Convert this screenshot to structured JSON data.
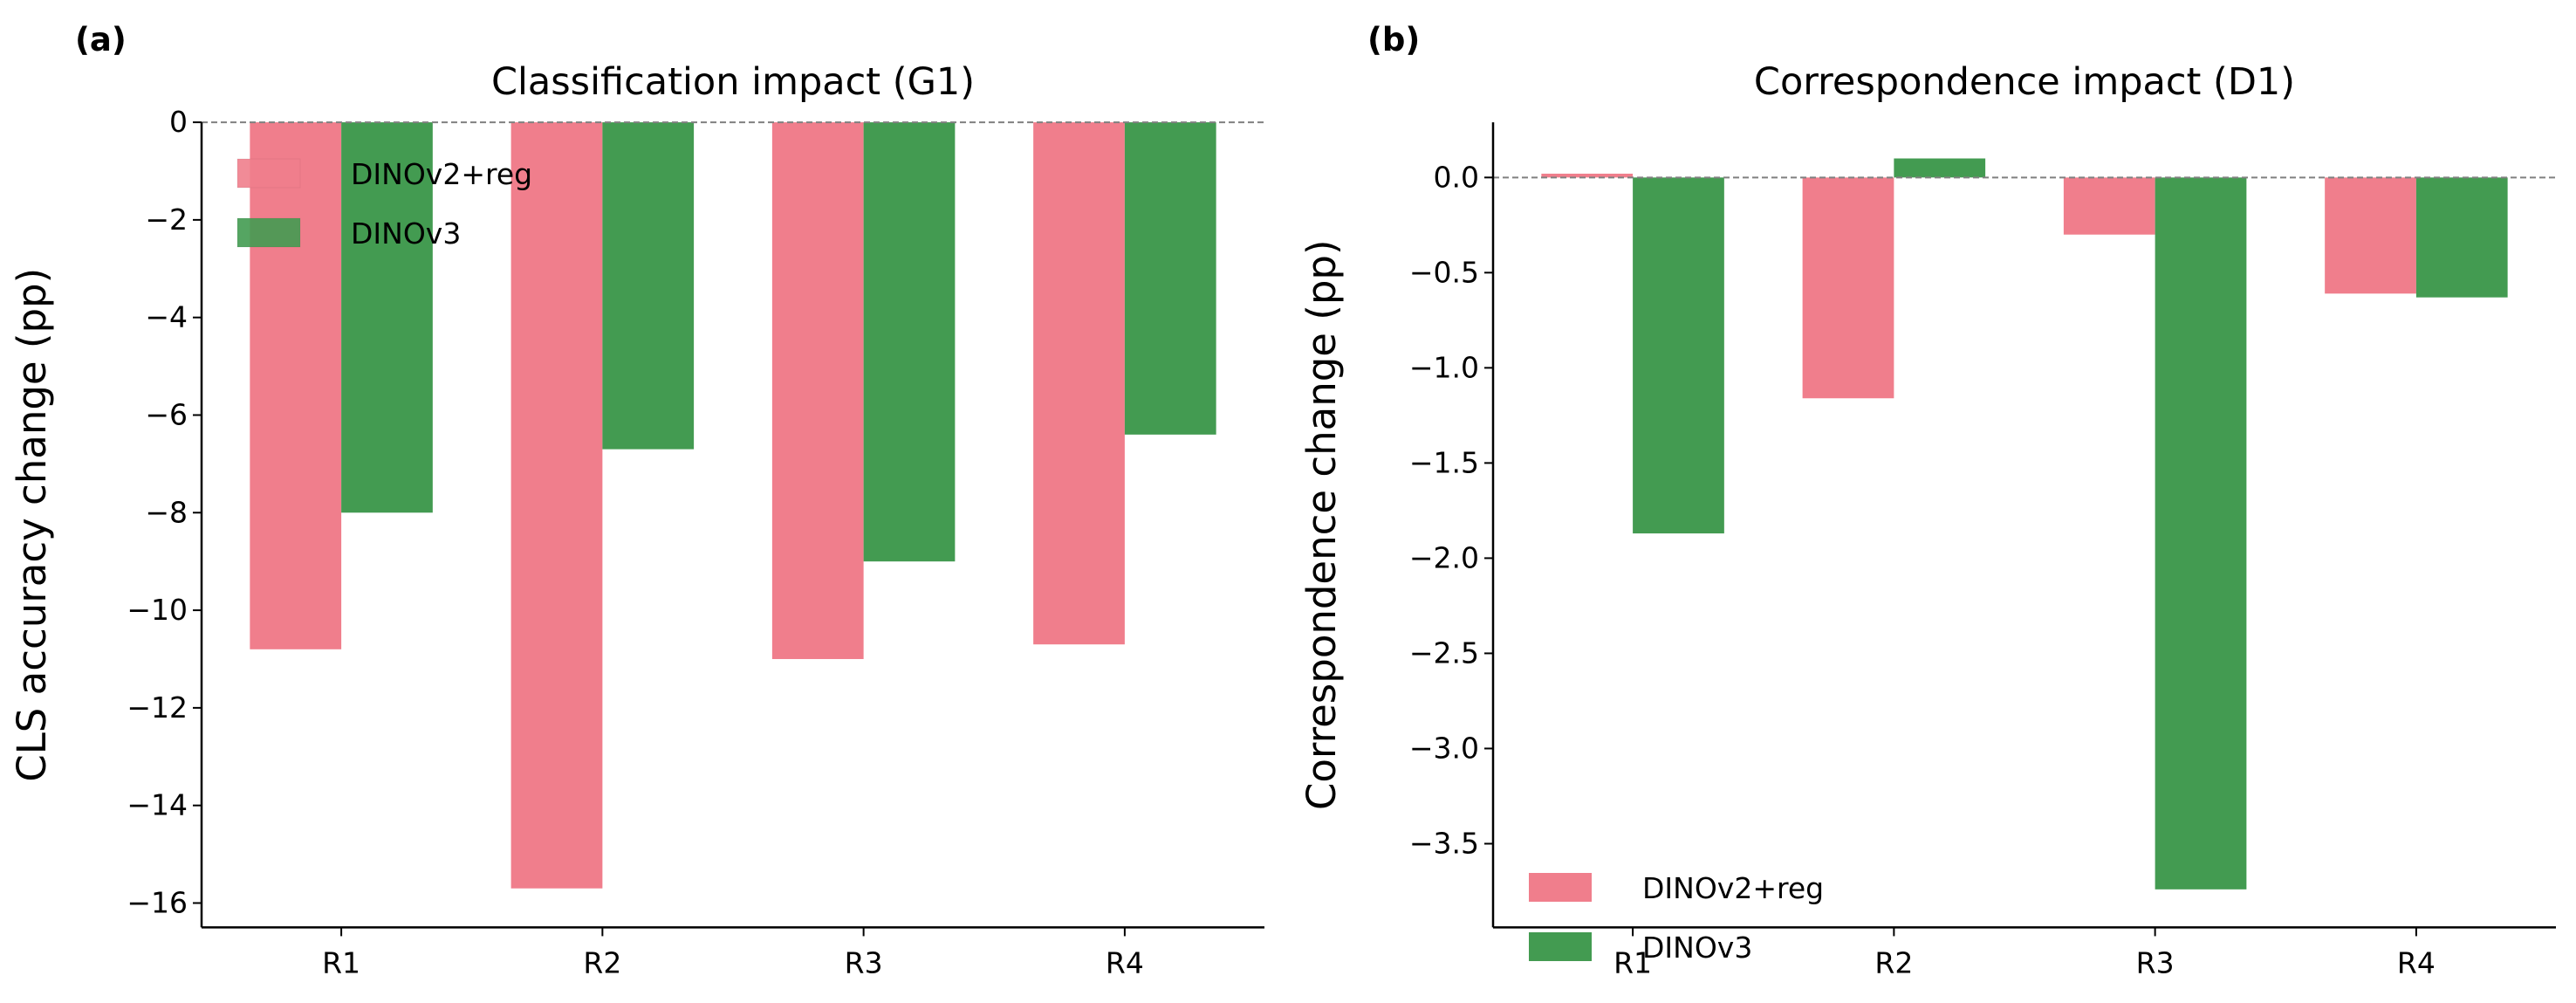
{
  "colors": {
    "DINOv2+reg": "#f07e8c",
    "DINOv3": "#439b51"
  },
  "chart_data": [
    {
      "type": "bar",
      "panel_label": "(a)",
      "title": "Classification impact (G1)",
      "xlabel": "",
      "ylabel": "CLS accuracy change (pp)",
      "categories": [
        "R1",
        "R2",
        "R3",
        "R4"
      ],
      "series": [
        {
          "name": "DINOv2+reg",
          "values": [
            -10.8,
            -15.7,
            -11.0,
            -10.7
          ]
        },
        {
          "name": "DINOv3",
          "values": [
            -8.0,
            -6.7,
            -9.0,
            -6.4
          ]
        }
      ],
      "ylim": [
        -16.5,
        0
      ],
      "yticks": [
        0,
        -2,
        -4,
        -6,
        -8,
        -10,
        -12,
        -14,
        -16
      ],
      "ytick_labels": [
        "0",
        "−2",
        "−4",
        "−6",
        "−8",
        "−10",
        "−12",
        "−14",
        "−16"
      ],
      "reference_line": 0,
      "legend": "upper-left",
      "grid": false
    },
    {
      "type": "bar",
      "panel_label": "(b)",
      "title": "Correspondence impact (D1)",
      "xlabel": "",
      "ylabel": "Correspondence change (pp)",
      "categories": [
        "R1",
        "R2",
        "R3",
        "R4"
      ],
      "series": [
        {
          "name": "DINOv2+reg",
          "values": [
            0.02,
            -1.16,
            -0.3,
            -0.61
          ]
        },
        {
          "name": "DINOv3",
          "values": [
            -1.87,
            0.1,
            -3.74,
            -0.63
          ]
        }
      ],
      "ylim": [
        -3.94,
        0.29
      ],
      "yticks": [
        0.0,
        -0.5,
        -1.0,
        -1.5,
        -2.0,
        -2.5,
        -3.0,
        -3.5
      ],
      "ytick_labels": [
        "0.0",
        "−0.5",
        "−1.0",
        "−1.5",
        "−2.0",
        "−2.5",
        "−3.0",
        "−3.5"
      ],
      "reference_line": 0,
      "legend": "lower-left",
      "grid": false
    }
  ]
}
